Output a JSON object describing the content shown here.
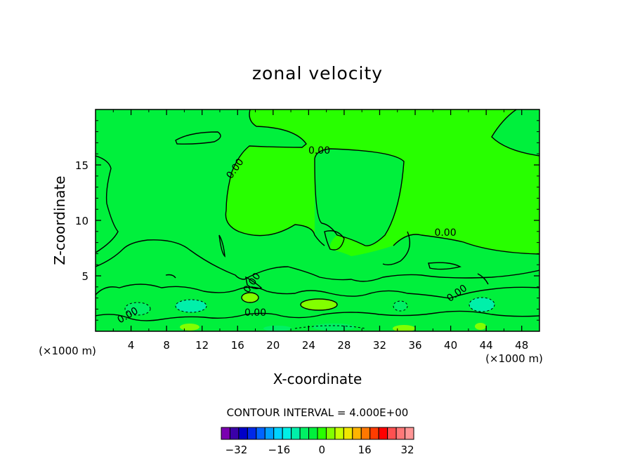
{
  "chart_data": {
    "type": "heatmap",
    "title": "zonal velocity",
    "xlabel": "X-coordinate",
    "ylabel": "Z-coordinate",
    "x_units": "(×1000 m)",
    "x_units_right": "(×1000 m)",
    "xlim": [
      0,
      50
    ],
    "ylim": [
      0,
      20
    ],
    "x_ticks": [
      4,
      8,
      12,
      16,
      20,
      24,
      28,
      32,
      36,
      40,
      44,
      48
    ],
    "x_tick_labels": [
      "4",
      "8",
      "12",
      "16",
      "20",
      "24",
      "28",
      "32",
      "36",
      "40",
      "44",
      "48"
    ],
    "y_ticks": [
      5,
      10,
      15
    ],
    "y_tick_labels": [
      "5",
      "10",
      "15"
    ],
    "contour_interval_text": "CONTOUR INTERVAL = 4.000E+00",
    "contour_interval": 4,
    "contour_labels": [
      {
        "text": "0.00",
        "x": 16,
        "y": 14.5,
        "rot": -55
      },
      {
        "text": "0.00",
        "x": 25.2,
        "y": 16.0,
        "rot": 0
      },
      {
        "text": "0.00",
        "x": 39.4,
        "y": 8.6,
        "rot": 0
      },
      {
        "text": "0.00",
        "x": 17.9,
        "y": 4.2,
        "rot": -55
      },
      {
        "text": "0.00",
        "x": 40.9,
        "y": 3.2,
        "rot": -35
      },
      {
        "text": "0.00",
        "x": 3.8,
        "y": 1.2,
        "rot": -30
      },
      {
        "text": "0.00",
        "x": 18.0,
        "y": 1.4,
        "rot": 0
      }
    ],
    "colorbar": {
      "min": -36,
      "max": 36,
      "step": 4,
      "tick_values": [
        -32,
        -16,
        0,
        16,
        32
      ],
      "tick_labels": [
        "−32",
        "−16",
        "0",
        "16",
        "32"
      ],
      "colors": [
        "#7a00b0",
        "#3a00a8",
        "#0000c8",
        "#0028e8",
        "#0064ff",
        "#00a0ff",
        "#00d2ff",
        "#00f0e6",
        "#00f0aa",
        "#00f064",
        "#00f03c",
        "#28ff00",
        "#82ff00",
        "#c8ff00",
        "#f0e600",
        "#ffb400",
        "#ff7800",
        "#ff3c00",
        "#ff0000",
        "#ff5050",
        "#ff7878",
        "#ff9696"
      ]
    },
    "field_colors": {
      "background": "#28ff00",
      "slightly_negative": "#00f03c",
      "negative": "#00f064",
      "more_negative": "#00f0aa",
      "slightly_positive": "#82ff00"
    }
  }
}
